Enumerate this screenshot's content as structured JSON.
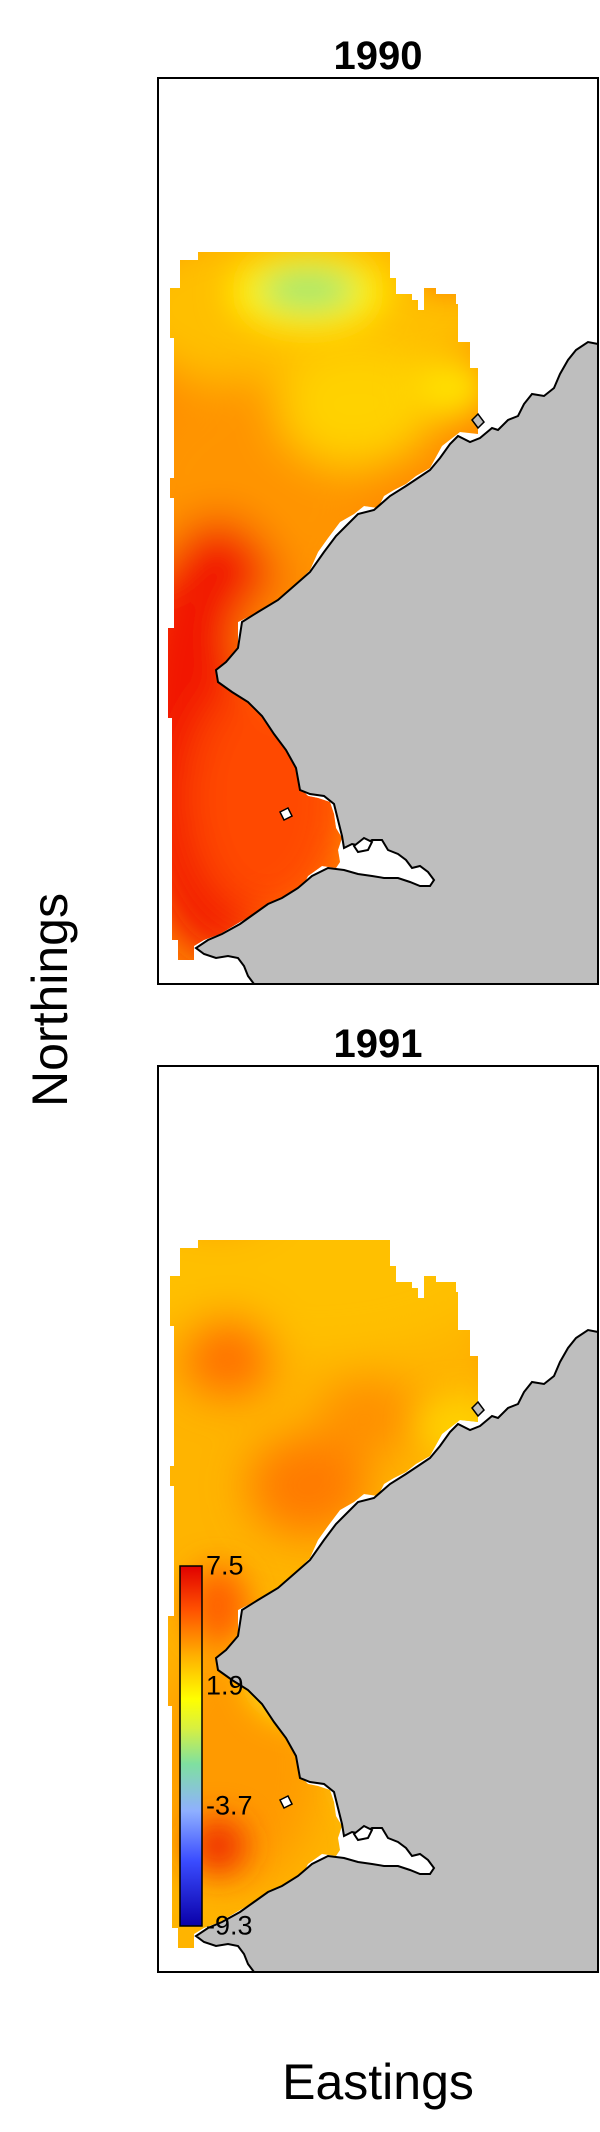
{
  "panels": [
    {
      "title": "1990"
    },
    {
      "title": "1991"
    }
  ],
  "axes": {
    "ylabel": "Northings",
    "xlabel": "Eastings"
  },
  "legend": {
    "ticks": [
      "7.5",
      "1.9",
      "-3.7",
      "-9.3"
    ],
    "range": [
      -9.3,
      7.5
    ],
    "colorscale": [
      "#0a00a8",
      "#4a7bff",
      "#6fd7d0",
      "#b8f070",
      "#ffff00",
      "#ffc000",
      "#ff6a00",
      "#e80000"
    ]
  },
  "colors": {
    "land": "#bebebe",
    "frame": "#000000",
    "sea_missing": "#ffffff"
  }
}
